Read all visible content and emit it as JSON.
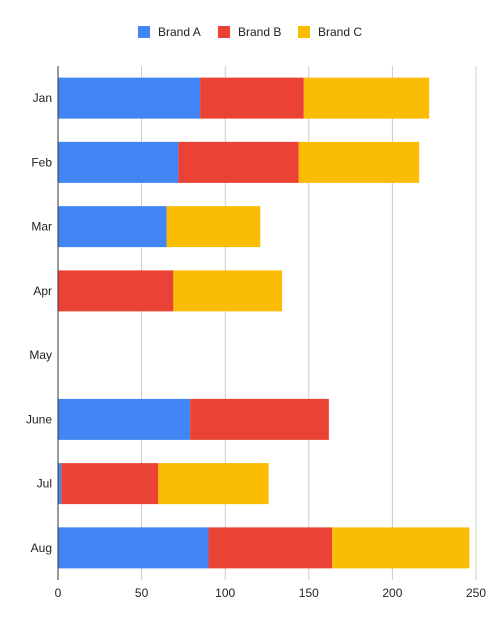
{
  "chart_data": {
    "type": "bar",
    "orientation": "horizontal",
    "stacked": true,
    "categories": [
      "Jan",
      "Feb",
      "Mar",
      "Apr",
      "May",
      "June",
      "Jul",
      "Aug"
    ],
    "series": [
      {
        "name": "Brand A",
        "color": "#4285f4",
        "values": [
          85,
          72,
          65,
          0,
          0,
          79,
          2,
          90
        ]
      },
      {
        "name": "Brand B",
        "color": "#ea4335",
        "values": [
          62,
          72,
          0,
          69,
          0,
          83,
          58,
          74
        ]
      },
      {
        "name": "Brand C",
        "color": "#fbbc04",
        "values": [
          75,
          72,
          56,
          65,
          0,
          0,
          66,
          82
        ]
      }
    ],
    "xlim": [
      0,
      250
    ],
    "xticks": [
      0,
      50,
      100,
      150,
      200,
      250
    ],
    "title": "",
    "xlabel": "",
    "ylabel": "",
    "grid": true,
    "legend_position": "top"
  }
}
